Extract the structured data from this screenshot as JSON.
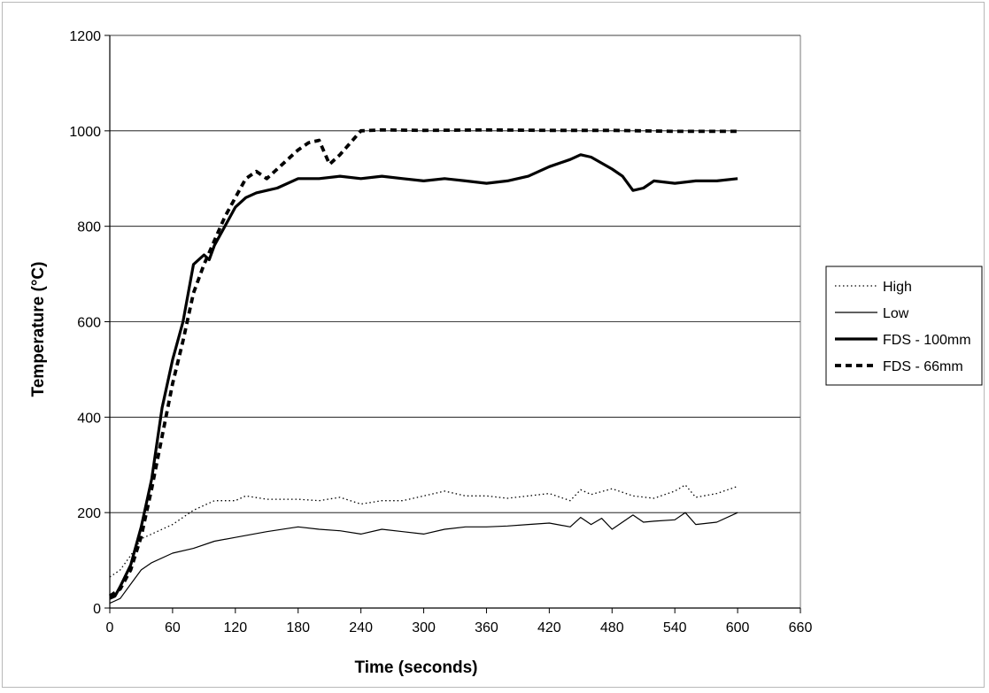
{
  "chart_data": {
    "type": "line",
    "title": "",
    "xlabel": "Time (seconds)",
    "ylabel": "Temperature (°C)",
    "xlim": [
      0,
      660
    ],
    "ylim": [
      0,
      1200
    ],
    "x_ticks": [
      0,
      60,
      120,
      180,
      240,
      300,
      360,
      420,
      480,
      540,
      600,
      660
    ],
    "y_ticks": [
      0,
      200,
      400,
      600,
      800,
      1000,
      1200
    ],
    "grid": "horizontal major gridlines",
    "legend_position": "right",
    "series": [
      {
        "name": "High",
        "style": "dotted-thin",
        "color": "#000000",
        "x": [
          0,
          10,
          20,
          30,
          40,
          60,
          80,
          100,
          120,
          130,
          150,
          180,
          200,
          220,
          240,
          260,
          280,
          300,
          320,
          340,
          360,
          380,
          400,
          420,
          440,
          450,
          460,
          480,
          500,
          520,
          540,
          550,
          560,
          580,
          600
        ],
        "y": [
          65,
          80,
          110,
          145,
          155,
          175,
          205,
          225,
          225,
          235,
          228,
          228,
          225,
          232,
          218,
          225,
          225,
          235,
          245,
          235,
          235,
          230,
          235,
          240,
          225,
          248,
          238,
          250,
          235,
          230,
          245,
          258,
          232,
          240,
          255
        ]
      },
      {
        "name": "Low",
        "style": "solid-thin",
        "color": "#000000",
        "x": [
          0,
          10,
          20,
          30,
          40,
          60,
          80,
          100,
          120,
          150,
          180,
          200,
          220,
          240,
          260,
          280,
          300,
          320,
          340,
          360,
          380,
          400,
          420,
          440,
          450,
          460,
          470,
          480,
          500,
          510,
          520,
          540,
          550,
          560,
          580,
          600
        ],
        "y": [
          10,
          20,
          50,
          80,
          95,
          115,
          125,
          140,
          148,
          160,
          170,
          165,
          162,
          155,
          165,
          160,
          155,
          165,
          170,
          170,
          172,
          175,
          178,
          170,
          190,
          175,
          188,
          165,
          195,
          180,
          182,
          185,
          200,
          175,
          180,
          200
        ]
      },
      {
        "name": "FDS - 100mm",
        "style": "solid-thick",
        "color": "#000000",
        "x": [
          0,
          5,
          10,
          20,
          30,
          40,
          50,
          60,
          70,
          80,
          90,
          95,
          100,
          110,
          120,
          130,
          140,
          150,
          160,
          180,
          200,
          220,
          240,
          260,
          280,
          300,
          320,
          340,
          360,
          380,
          400,
          420,
          440,
          450,
          460,
          480,
          490,
          500,
          510,
          520,
          540,
          560,
          580,
          600
        ],
        "y": [
          20,
          25,
          45,
          90,
          170,
          270,
          420,
          520,
          600,
          720,
          740,
          730,
          760,
          800,
          840,
          860,
          870,
          875,
          880,
          900,
          900,
          905,
          900,
          905,
          900,
          895,
          900,
          895,
          890,
          895,
          905,
          925,
          940,
          950,
          945,
          920,
          905,
          875,
          880,
          895,
          890,
          895,
          895,
          900
        ]
      },
      {
        "name": "FDS - 66mm",
        "style": "dashed-thick",
        "color": "#000000",
        "x": [
          0,
          10,
          20,
          30,
          40,
          50,
          60,
          70,
          80,
          90,
          100,
          110,
          120,
          130,
          140,
          150,
          160,
          170,
          180,
          190,
          200,
          210,
          220,
          230,
          240,
          260,
          300,
          360,
          420,
          480,
          540,
          600
        ],
        "y": [
          25,
          40,
          80,
          150,
          250,
          360,
          470,
          560,
          660,
          720,
          770,
          820,
          860,
          900,
          915,
          900,
          920,
          940,
          960,
          975,
          980,
          930,
          950,
          975,
          1000,
          1002,
          1001,
          1002,
          1001,
          1001,
          999,
          999
        ]
      }
    ]
  }
}
